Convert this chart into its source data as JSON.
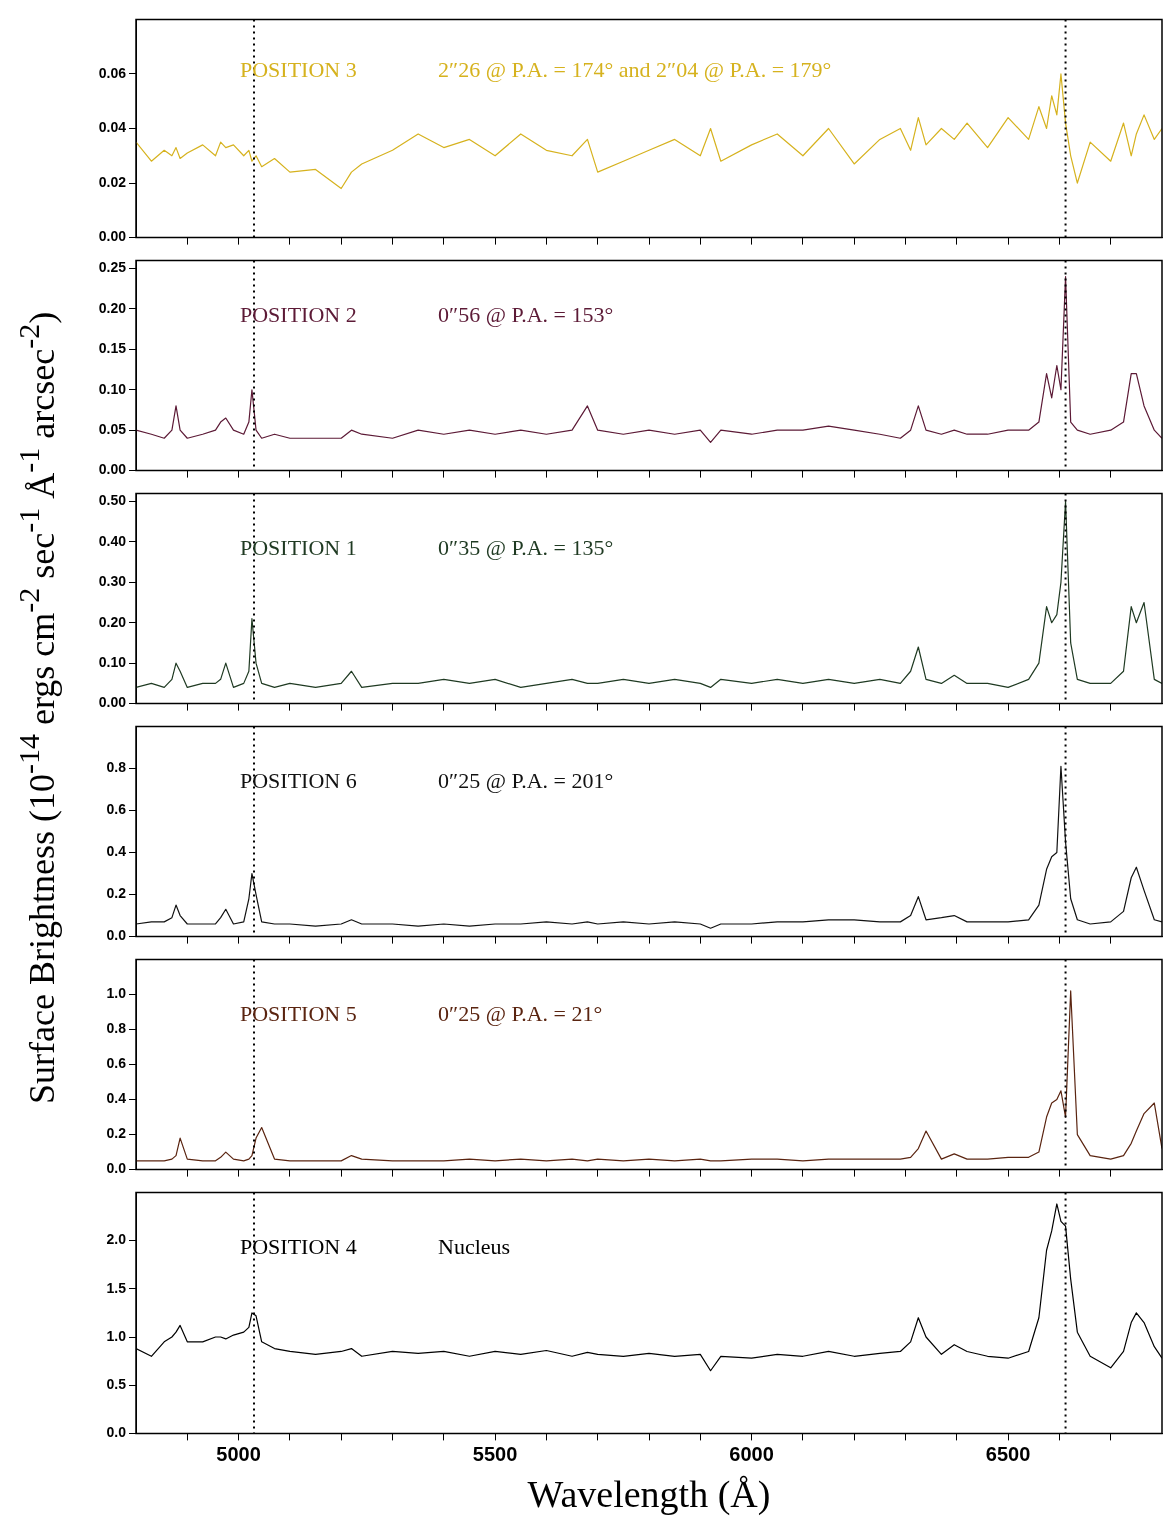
{
  "chart_data": [
    {
      "type": "line",
      "title": "POSITION 3",
      "subtitle": "2″26 @ P.A. = 174° and 2″04 @ P.A. = 179°",
      "x": [
        4800,
        4830,
        4855,
        4870,
        4878,
        4886,
        4900,
        4930,
        4955,
        4965,
        4975,
        4990,
        5010,
        5020,
        5026,
        5034,
        5045,
        5070,
        5100,
        5150,
        5200,
        5220,
        5240,
        5300,
        5350,
        5400,
        5450,
        5500,
        5550,
        5600,
        5650,
        5680,
        5700,
        5750,
        5800,
        5850,
        5900,
        5920,
        5940,
        6000,
        6050,
        6100,
        6150,
        6200,
        6250,
        6290,
        6310,
        6325,
        6340,
        6370,
        6395,
        6420,
        6460,
        6500,
        6540,
        6560,
        6575,
        6585,
        6595,
        6603,
        6612,
        6622,
        6635,
        6660,
        6700,
        6725,
        6740,
        6750,
        6765,
        6785,
        6800
      ],
      "series": [
        {
          "color": "#d6b21e",
          "values": [
            0.035,
            0.028,
            0.032,
            0.03,
            0.033,
            0.029,
            0.031,
            0.034,
            0.03,
            0.035,
            0.033,
            0.034,
            0.03,
            0.032,
            0.028,
            0.03,
            0.026,
            0.029,
            0.024,
            0.025,
            0.018,
            0.024,
            0.027,
            0.032,
            0.038,
            0.033,
            0.036,
            0.03,
            0.038,
            0.032,
            0.03,
            0.036,
            0.024,
            0.028,
            0.032,
            0.036,
            0.03,
            0.04,
            0.028,
            0.034,
            0.038,
            0.03,
            0.04,
            0.027,
            0.036,
            0.04,
            0.032,
            0.044,
            0.034,
            0.04,
            0.036,
            0.042,
            0.033,
            0.044,
            0.036,
            0.048,
            0.04,
            0.052,
            0.045,
            0.06,
            0.042,
            0.03,
            0.02,
            0.035,
            0.028,
            0.042,
            0.03,
            0.038,
            0.045,
            0.036,
            0.04
          ]
        }
      ],
      "xlim": [
        4800,
        6800
      ],
      "xticks": [
        {
          "value": 4900,
          "label": null
        },
        5000,
        {
          "value": 5100,
          "label": null
        },
        {
          "value": 5200,
          "label": null
        },
        {
          "value": 5300,
          "label": null
        },
        {
          "value": 5400,
          "label": null
        },
        5500,
        {
          "value": 5600,
          "label": null
        },
        {
          "value": 5700,
          "label": null
        },
        {
          "value": 5800,
          "label": null
        },
        {
          "value": 5900,
          "label": null
        },
        6000,
        {
          "value": 6100,
          "label": null
        },
        {
          "value": 6200,
          "label": null
        },
        {
          "value": 6300,
          "label": null
        },
        {
          "value": 6400,
          "label": null
        },
        6500,
        {
          "value": 6600,
          "label": null
        },
        {
          "value": 6700,
          "label": null
        }
      ],
      "ylim": [
        0,
        0.08
      ],
      "yticks": [
        {
          "value": 0,
          "label": "0.00"
        },
        {
          "value": 0.02,
          "label": "0.02"
        },
        {
          "value": 0.04,
          "label": "0.04"
        },
        {
          "value": 0.06,
          "label": "0.06"
        }
      ],
      "tick_labels": "y",
      "legend": false,
      "ref_lines": [
        {
          "axis": "x",
          "value": 5030,
          "line_style": "dotted",
          "color": "#000000"
        },
        {
          "axis": "x",
          "value": 6612,
          "line_style": "dotted",
          "color": "#000000"
        }
      ]
    },
    {
      "type": "line",
      "title": "POSITION 2",
      "subtitle": "0″56 @ P.A. = 153°",
      "x": [
        4800,
        4830,
        4855,
        4870,
        4878,
        4886,
        4900,
        4930,
        4955,
        4965,
        4975,
        4990,
        5010,
        5020,
        5026,
        5034,
        5045,
        5070,
        5100,
        5150,
        5200,
        5220,
        5240,
        5300,
        5350,
        5400,
        5450,
        5500,
        5550,
        5600,
        5650,
        5680,
        5700,
        5750,
        5800,
        5850,
        5900,
        5920,
        5940,
        6000,
        6050,
        6100,
        6150,
        6200,
        6250,
        6290,
        6310,
        6325,
        6340,
        6370,
        6395,
        6420,
        6460,
        6500,
        6540,
        6560,
        6575,
        6585,
        6595,
        6603,
        6612,
        6622,
        6635,
        6660,
        6700,
        6725,
        6740,
        6750,
        6765,
        6785,
        6800
      ],
      "series": [
        {
          "color": "#5c1a36",
          "values": [
            0.05,
            0.045,
            0.04,
            0.05,
            0.08,
            0.05,
            0.04,
            0.045,
            0.05,
            0.06,
            0.065,
            0.05,
            0.045,
            0.06,
            0.1,
            0.05,
            0.04,
            0.045,
            0.04,
            0.04,
            0.04,
            0.05,
            0.045,
            0.04,
            0.05,
            0.045,
            0.05,
            0.045,
            0.05,
            0.045,
            0.05,
            0.08,
            0.05,
            0.045,
            0.05,
            0.045,
            0.05,
            0.035,
            0.05,
            0.045,
            0.05,
            0.05,
            0.055,
            0.05,
            0.045,
            0.04,
            0.05,
            0.08,
            0.05,
            0.045,
            0.05,
            0.045,
            0.045,
            0.05,
            0.05,
            0.06,
            0.12,
            0.09,
            0.13,
            0.1,
            0.24,
            0.06,
            0.05,
            0.045,
            0.05,
            0.06,
            0.12,
            0.12,
            0.08,
            0.05,
            0.04
          ]
        }
      ],
      "xlim": [
        4800,
        6800
      ],
      "xticks": [
        {
          "value": 4900,
          "label": null
        },
        5000,
        {
          "value": 5100,
          "label": null
        },
        {
          "value": 5200,
          "label": null
        },
        {
          "value": 5300,
          "label": null
        },
        {
          "value": 5400,
          "label": null
        },
        5500,
        {
          "value": 5600,
          "label": null
        },
        {
          "value": 5700,
          "label": null
        },
        {
          "value": 5800,
          "label": null
        },
        {
          "value": 5900,
          "label": null
        },
        6000,
        {
          "value": 6100,
          "label": null
        },
        {
          "value": 6200,
          "label": null
        },
        {
          "value": 6300,
          "label": null
        },
        {
          "value": 6400,
          "label": null
        },
        6500,
        {
          "value": 6600,
          "label": null
        },
        {
          "value": 6700,
          "label": null
        }
      ],
      "ylim": [
        0,
        0.26
      ],
      "yticks": [
        {
          "value": 0,
          "label": "0.00"
        },
        {
          "value": 0.05,
          "label": "0.05"
        },
        {
          "value": 0.1,
          "label": "0.10"
        },
        {
          "value": 0.15,
          "label": "0.15"
        },
        {
          "value": 0.2,
          "label": "0.20"
        },
        {
          "value": 0.25,
          "label": "0.25"
        }
      ],
      "tick_labels": "y",
      "legend": false,
      "ref_lines": [
        {
          "axis": "x",
          "value": 5030,
          "line_style": "dotted",
          "color": "#000000"
        },
        {
          "axis": "x",
          "value": 6612,
          "line_style": "dotted",
          "color": "#000000"
        }
      ]
    },
    {
      "type": "line",
      "title": "POSITION 1",
      "subtitle": "0″35 @ P.A. = 135°",
      "x": [
        4800,
        4830,
        4855,
        4870,
        4878,
        4886,
        4900,
        4930,
        4955,
        4965,
        4975,
        4990,
        5010,
        5020,
        5026,
        5034,
        5045,
        5070,
        5100,
        5150,
        5200,
        5220,
        5240,
        5300,
        5350,
        5400,
        5450,
        5500,
        5550,
        5600,
        5650,
        5680,
        5700,
        5750,
        5800,
        5850,
        5900,
        5920,
        5940,
        6000,
        6050,
        6100,
        6150,
        6200,
        6250,
        6290,
        6310,
        6325,
        6340,
        6370,
        6395,
        6420,
        6460,
        6500,
        6540,
        6560,
        6575,
        6585,
        6595,
        6603,
        6612,
        6622,
        6635,
        6660,
        6700,
        6725,
        6740,
        6750,
        6765,
        6785,
        6800
      ],
      "series": [
        {
          "color": "#1f3a22",
          "values": [
            0.04,
            0.05,
            0.04,
            0.06,
            0.1,
            0.08,
            0.04,
            0.05,
            0.05,
            0.06,
            0.1,
            0.04,
            0.05,
            0.08,
            0.21,
            0.1,
            0.05,
            0.04,
            0.05,
            0.04,
            0.05,
            0.08,
            0.04,
            0.05,
            0.05,
            0.06,
            0.05,
            0.06,
            0.04,
            0.05,
            0.06,
            0.05,
            0.05,
            0.06,
            0.05,
            0.06,
            0.05,
            0.04,
            0.06,
            0.05,
            0.06,
            0.05,
            0.06,
            0.05,
            0.06,
            0.05,
            0.08,
            0.14,
            0.06,
            0.05,
            0.07,
            0.05,
            0.05,
            0.04,
            0.06,
            0.1,
            0.24,
            0.2,
            0.22,
            0.3,
            0.5,
            0.15,
            0.06,
            0.05,
            0.05,
            0.08,
            0.24,
            0.2,
            0.25,
            0.06,
            0.05
          ]
        }
      ],
      "xlim": [
        4800,
        6800
      ],
      "xticks": [
        {
          "value": 4900,
          "label": null
        },
        5000,
        {
          "value": 5100,
          "label": null
        },
        {
          "value": 5200,
          "label": null
        },
        {
          "value": 5300,
          "label": null
        },
        {
          "value": 5400,
          "label": null
        },
        5500,
        {
          "value": 5600,
          "label": null
        },
        {
          "value": 5700,
          "label": null
        },
        {
          "value": 5800,
          "label": null
        },
        {
          "value": 5900,
          "label": null
        },
        6000,
        {
          "value": 6100,
          "label": null
        },
        {
          "value": 6200,
          "label": null
        },
        {
          "value": 6300,
          "label": null
        },
        {
          "value": 6400,
          "label": null
        },
        6500,
        {
          "value": 6600,
          "label": null
        },
        {
          "value": 6700,
          "label": null
        }
      ],
      "ylim": [
        0,
        0.52
      ],
      "yticks": [
        {
          "value": 0,
          "label": "0.00"
        },
        {
          "value": 0.1,
          "label": "0.10"
        },
        {
          "value": 0.2,
          "label": "0.20"
        },
        {
          "value": 0.3,
          "label": "0.30"
        },
        {
          "value": 0.4,
          "label": "0.40"
        },
        {
          "value": 0.5,
          "label": "0.50"
        }
      ],
      "tick_labels": "y",
      "legend": false,
      "ref_lines": [
        {
          "axis": "x",
          "value": 5030,
          "line_style": "dotted",
          "color": "#000000"
        },
        {
          "axis": "x",
          "value": 6612,
          "line_style": "dotted",
          "color": "#000000"
        }
      ]
    },
    {
      "type": "line",
      "title": "POSITION 6",
      "subtitle": "0″25 @ P.A. = 201°",
      "x": [
        4800,
        4830,
        4855,
        4870,
        4878,
        4886,
        4900,
        4930,
        4955,
        4965,
        4975,
        4990,
        5010,
        5020,
        5026,
        5034,
        5045,
        5070,
        5100,
        5150,
        5200,
        5220,
        5240,
        5300,
        5350,
        5400,
        5450,
        5500,
        5550,
        5600,
        5650,
        5680,
        5700,
        5750,
        5800,
        5850,
        5900,
        5920,
        5940,
        6000,
        6050,
        6100,
        6150,
        6200,
        6250,
        6290,
        6310,
        6325,
        6340,
        6370,
        6395,
        6420,
        6460,
        6500,
        6540,
        6560,
        6575,
        6585,
        6595,
        6603,
        6612,
        6622,
        6635,
        6660,
        6700,
        6725,
        6740,
        6750,
        6765,
        6785,
        6800
      ],
      "series": [
        {
          "color": "#111111",
          "values": [
            0.06,
            0.07,
            0.07,
            0.09,
            0.15,
            0.1,
            0.06,
            0.06,
            0.06,
            0.09,
            0.13,
            0.06,
            0.07,
            0.18,
            0.3,
            0.2,
            0.07,
            0.06,
            0.06,
            0.05,
            0.06,
            0.08,
            0.06,
            0.06,
            0.05,
            0.06,
            0.05,
            0.06,
            0.06,
            0.07,
            0.06,
            0.07,
            0.06,
            0.07,
            0.06,
            0.07,
            0.06,
            0.04,
            0.06,
            0.06,
            0.07,
            0.07,
            0.08,
            0.08,
            0.07,
            0.07,
            0.1,
            0.19,
            0.08,
            0.09,
            0.1,
            0.07,
            0.07,
            0.07,
            0.08,
            0.15,
            0.32,
            0.38,
            0.4,
            0.81,
            0.45,
            0.18,
            0.08,
            0.06,
            0.07,
            0.12,
            0.28,
            0.33,
            0.22,
            0.08,
            0.07
          ]
        }
      ],
      "xlim": [
        4800,
        6800
      ],
      "xticks": [
        {
          "value": 4900,
          "label": null
        },
        5000,
        {
          "value": 5100,
          "label": null
        },
        {
          "value": 5200,
          "label": null
        },
        {
          "value": 5300,
          "label": null
        },
        {
          "value": 5400,
          "label": null
        },
        5500,
        {
          "value": 5600,
          "label": null
        },
        {
          "value": 5700,
          "label": null
        },
        {
          "value": 5800,
          "label": null
        },
        {
          "value": 5900,
          "label": null
        },
        6000,
        {
          "value": 6100,
          "label": null
        },
        {
          "value": 6200,
          "label": null
        },
        {
          "value": 6300,
          "label": null
        },
        {
          "value": 6400,
          "label": null
        },
        6500,
        {
          "value": 6600,
          "label": null
        },
        {
          "value": 6700,
          "label": null
        }
      ],
      "ylim": [
        0,
        1.0
      ],
      "yticks": [
        {
          "value": 0,
          "label": "0.0"
        },
        {
          "value": 0.2,
          "label": "0.2"
        },
        {
          "value": 0.4,
          "label": "0.4"
        },
        {
          "value": 0.6,
          "label": "0.6"
        },
        {
          "value": 0.8,
          "label": "0.8"
        }
      ],
      "tick_labels": "y",
      "legend": false,
      "ref_lines": [
        {
          "axis": "x",
          "value": 5030,
          "line_style": "dotted",
          "color": "#000000"
        },
        {
          "axis": "x",
          "value": 6612,
          "line_style": "dotted",
          "color": "#000000"
        }
      ]
    },
    {
      "type": "line",
      "title": "POSITION 5",
      "subtitle": "0″25 @ P.A. = 21°",
      "x": [
        4800,
        4830,
        4855,
        4870,
        4878,
        4886,
        4900,
        4930,
        4955,
        4965,
        4975,
        4990,
        5010,
        5020,
        5026,
        5034,
        5045,
        5070,
        5100,
        5150,
        5200,
        5220,
        5240,
        5300,
        5350,
        5400,
        5450,
        5500,
        5550,
        5600,
        5650,
        5680,
        5700,
        5750,
        5800,
        5850,
        5900,
        5920,
        5940,
        6000,
        6050,
        6100,
        6150,
        6200,
        6250,
        6290,
        6310,
        6325,
        6340,
        6370,
        6395,
        6420,
        6460,
        6500,
        6540,
        6560,
        6575,
        6585,
        6595,
        6603,
        6612,
        6622,
        6635,
        6660,
        6700,
        6725,
        6740,
        6750,
        6765,
        6785,
        6800
      ],
      "series": [
        {
          "color": "#5a2410",
          "values": [
            0.05,
            0.05,
            0.05,
            0.06,
            0.08,
            0.18,
            0.06,
            0.05,
            0.05,
            0.07,
            0.1,
            0.06,
            0.05,
            0.06,
            0.08,
            0.18,
            0.24,
            0.06,
            0.05,
            0.05,
            0.05,
            0.08,
            0.06,
            0.05,
            0.05,
            0.05,
            0.06,
            0.05,
            0.06,
            0.05,
            0.06,
            0.05,
            0.06,
            0.05,
            0.06,
            0.05,
            0.06,
            0.05,
            0.05,
            0.06,
            0.06,
            0.05,
            0.06,
            0.06,
            0.06,
            0.06,
            0.07,
            0.12,
            0.22,
            0.06,
            0.09,
            0.06,
            0.06,
            0.07,
            0.07,
            0.1,
            0.3,
            0.38,
            0.4,
            0.45,
            0.3,
            1.02,
            0.2,
            0.08,
            0.06,
            0.08,
            0.15,
            0.22,
            0.32,
            0.38,
            0.12
          ]
        }
      ],
      "xlim": [
        4800,
        6800
      ],
      "xticks": [
        {
          "value": 4900,
          "label": null
        },
        5000,
        {
          "value": 5100,
          "label": null
        },
        {
          "value": 5200,
          "label": null
        },
        {
          "value": 5300,
          "label": null
        },
        {
          "value": 5400,
          "label": null
        },
        5500,
        {
          "value": 5600,
          "label": null
        },
        {
          "value": 5700,
          "label": null
        },
        {
          "value": 5800,
          "label": null
        },
        {
          "value": 5900,
          "label": null
        },
        6000,
        {
          "value": 6100,
          "label": null
        },
        {
          "value": 6200,
          "label": null
        },
        {
          "value": 6300,
          "label": null
        },
        {
          "value": 6400,
          "label": null
        },
        6500,
        {
          "value": 6600,
          "label": null
        },
        {
          "value": 6700,
          "label": null
        }
      ],
      "ylim": [
        0,
        1.2
      ],
      "yticks": [
        {
          "value": 0,
          "label": "0.0"
        },
        {
          "value": 0.2,
          "label": "0.2"
        },
        {
          "value": 0.4,
          "label": "0.4"
        },
        {
          "value": 0.6,
          "label": "0.6"
        },
        {
          "value": 0.8,
          "label": "0.8"
        },
        {
          "value": 1.0,
          "label": "1.0"
        }
      ],
      "tick_labels": "y",
      "legend": false,
      "ref_lines": [
        {
          "axis": "x",
          "value": 5030,
          "line_style": "dotted",
          "color": "#000000"
        },
        {
          "axis": "x",
          "value": 6612,
          "line_style": "dotted",
          "color": "#000000"
        }
      ]
    },
    {
      "type": "line",
      "title": "POSITION 4",
      "subtitle": "Nucleus",
      "xlabel": "Wavelength (Å)",
      "ylabel": "Surface Brightness (10$^{-14}$ ergs cm$^{-2}$ sec$^{-1}$ Å$^{-1}$ arcsec$^{-2}$)",
      "x": [
        4800,
        4830,
        4855,
        4870,
        4878,
        4886,
        4900,
        4930,
        4955,
        4965,
        4975,
        4990,
        5010,
        5020,
        5026,
        5034,
        5045,
        5070,
        5100,
        5150,
        5200,
        5220,
        5240,
        5300,
        5350,
        5400,
        5450,
        5500,
        5550,
        5600,
        5650,
        5680,
        5700,
        5750,
        5800,
        5850,
        5900,
        5920,
        5940,
        6000,
        6050,
        6100,
        6150,
        6200,
        6250,
        6290,
        6310,
        6325,
        6340,
        6370,
        6395,
        6420,
        6460,
        6500,
        6540,
        6560,
        6575,
        6585,
        6595,
        6603,
        6612,
        6622,
        6635,
        6660,
        6700,
        6725,
        6740,
        6750,
        6765,
        6785,
        6800
      ],
      "series": [
        {
          "color": "#000000",
          "values": [
            0.88,
            0.8,
            0.95,
            1.0,
            1.05,
            1.12,
            0.95,
            0.95,
            1.0,
            1.0,
            0.98,
            1.02,
            1.05,
            1.1,
            1.25,
            1.22,
            0.95,
            0.88,
            0.85,
            0.82,
            0.85,
            0.88,
            0.8,
            0.85,
            0.83,
            0.85,
            0.8,
            0.85,
            0.82,
            0.86,
            0.8,
            0.84,
            0.82,
            0.8,
            0.83,
            0.8,
            0.82,
            0.65,
            0.8,
            0.78,
            0.82,
            0.8,
            0.85,
            0.8,
            0.83,
            0.85,
            0.95,
            1.2,
            1.0,
            0.82,
            0.92,
            0.85,
            0.8,
            0.78,
            0.85,
            1.2,
            1.9,
            2.1,
            2.38,
            2.2,
            2.15,
            1.6,
            1.05,
            0.8,
            0.68,
            0.85,
            1.15,
            1.25,
            1.15,
            0.9,
            0.78
          ]
        }
      ],
      "xlim": [
        4800,
        6800
      ],
      "xticks": [
        {
          "value": 4900,
          "label": null
        },
        5000,
        {
          "value": 5100,
          "label": null
        },
        {
          "value": 5200,
          "label": null
        },
        {
          "value": 5300,
          "label": null
        },
        {
          "value": 5400,
          "label": null
        },
        5500,
        {
          "value": 5600,
          "label": null
        },
        {
          "value": 5700,
          "label": null
        },
        {
          "value": 5800,
          "label": null
        },
        {
          "value": 5900,
          "label": null
        },
        6000,
        {
          "value": 6100,
          "label": null
        },
        {
          "value": 6200,
          "label": null
        },
        {
          "value": 6300,
          "label": null
        },
        {
          "value": 6400,
          "label": null
        },
        6500,
        {
          "value": 6600,
          "label": null
        },
        {
          "value": 6700,
          "label": null
        }
      ],
      "ylim": [
        0,
        2.5
      ],
      "yticks": [
        {
          "value": 0,
          "label": "0.0"
        },
        {
          "value": 0.5,
          "label": "0.5"
        },
        {
          "value": 1.0,
          "label": "1.0"
        },
        {
          "value": 1.5,
          "label": "1.5"
        },
        {
          "value": 2.0,
          "label": "2.0"
        }
      ],
      "legend": false,
      "ref_lines": [
        {
          "axis": "x",
          "value": 5030,
          "line_style": "dotted",
          "color": "#000000"
        },
        {
          "axis": "x",
          "value": 6612,
          "line_style": "dotted",
          "color": "#000000"
        }
      ]
    }
  ]
}
